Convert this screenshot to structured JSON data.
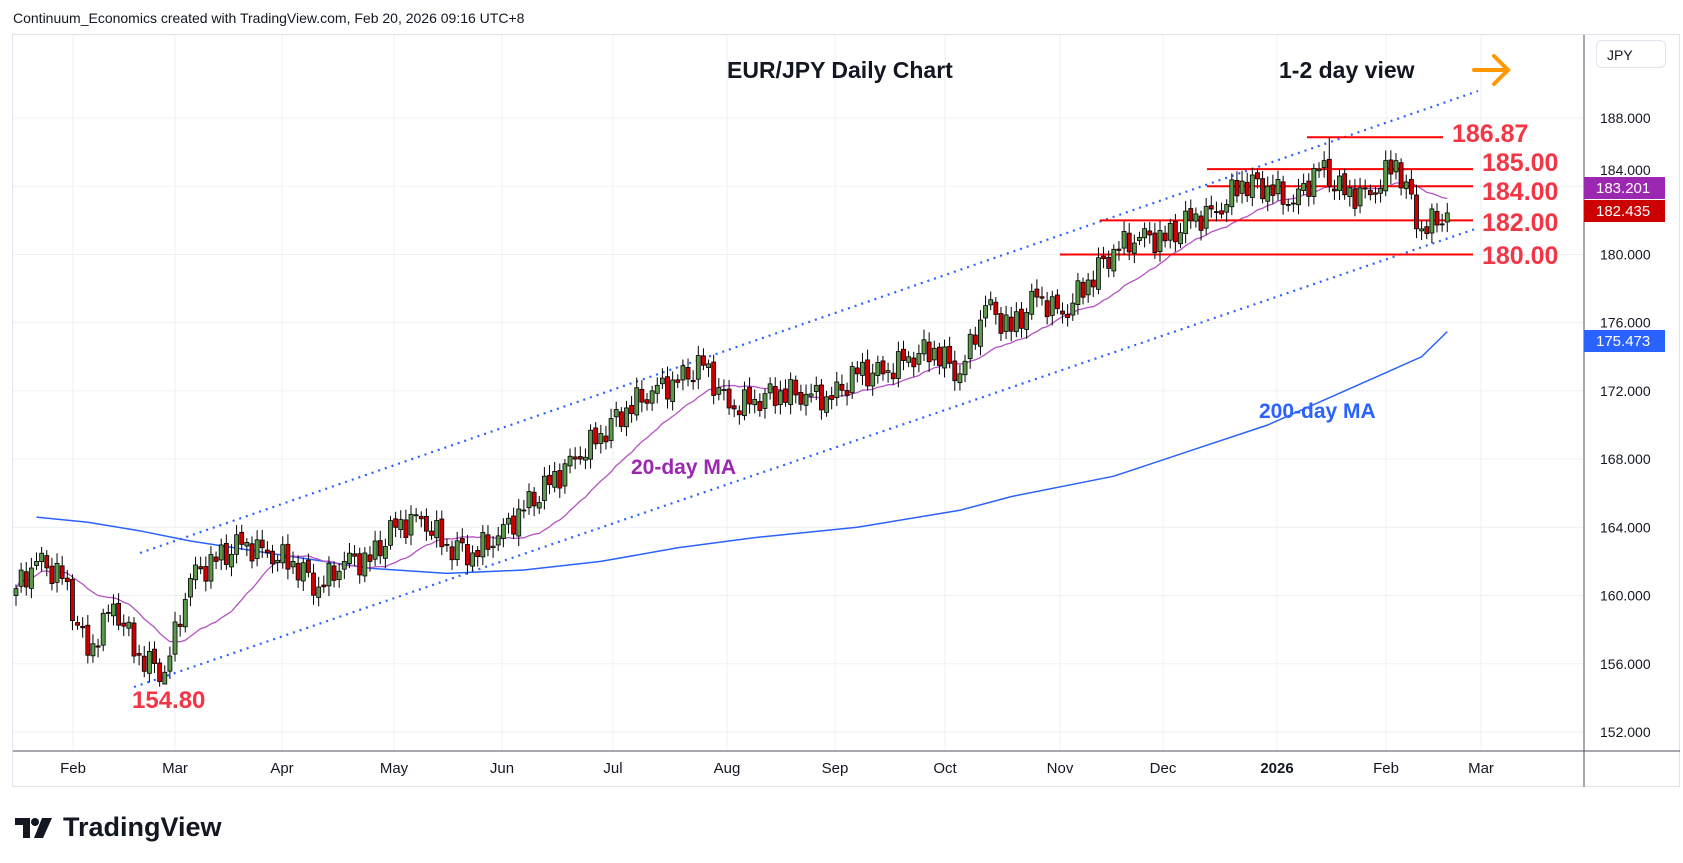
{
  "header": {
    "attribution": "Continuum_Economics created with TradingView.com, Feb 20, 2026 09:16 UTC+8"
  },
  "currency_button": "JPY",
  "brand": "TradingView",
  "chart_data": {
    "type": "candlestick",
    "title": "EUR/JPY Daily Chart",
    "subtitle": "1-2 day view",
    "view_direction": "right",
    "ylim": [
      150.5,
      190.5
    ],
    "y_ticks": [
      "152.000",
      "156.000",
      "160.000",
      "164.000",
      "168.000",
      "172.000",
      "176.000",
      "180.000",
      "184.000",
      "188.000"
    ],
    "x_ticks": [
      "Feb",
      "Mar",
      "Apr",
      "May",
      "Jun",
      "Jul",
      "Aug",
      "Sep",
      "Oct",
      "Nov",
      "Dec",
      "2026",
      "Feb",
      "Mar"
    ],
    "grid": true,
    "candles_per_week": 5,
    "weekly_closes": [
      162,
      161,
      156.5,
      159.5,
      156.5,
      155.5,
      161,
      162,
      163,
      162.5,
      162,
      160.5,
      162,
      162,
      164,
      164.5,
      163,
      162.5,
      163.5,
      165,
      166.5,
      168,
      169.5,
      171,
      172,
      172.5,
      173.5,
      171,
      171.5,
      172,
      171.8,
      171.5,
      173,
      173,
      174,
      174.5,
      173,
      177,
      175.5,
      177.5,
      176.5,
      178.5,
      180.3,
      181,
      180.8,
      182,
      182.5,
      184.3,
      184,
      183,
      185,
      183.5,
      183.5,
      185.5,
      181.5,
      182.435
    ],
    "first_open": 160.0,
    "period_low": 154.8,
    "period_high": 186.87,
    "ma200_anchors": [
      [
        0,
        164.6
      ],
      [
        2,
        164.3
      ],
      [
        4,
        163.8
      ],
      [
        6,
        163.2
      ],
      [
        9,
        162.5
      ],
      [
        13,
        161.6
      ],
      [
        16,
        161.3
      ],
      [
        19,
        161.5
      ],
      [
        22,
        162.0
      ],
      [
        25,
        162.8
      ],
      [
        28,
        163.4
      ],
      [
        32,
        164.0
      ],
      [
        36,
        165.0
      ],
      [
        38,
        165.8
      ],
      [
        42,
        167.0
      ],
      [
        45,
        168.5
      ],
      [
        48,
        170.0
      ],
      [
        51,
        172.0
      ],
      [
        54,
        174.0
      ],
      [
        55,
        175.473
      ]
    ],
    "ma20_period": 20,
    "levels": [
      {
        "label": "186.87",
        "value": 186.87
      },
      {
        "label": "185.00",
        "value": 185.0
      },
      {
        "label": "184.00",
        "value": 184.0
      },
      {
        "label": "182.00",
        "value": 182.0
      },
      {
        "label": "180.00",
        "value": 180.0
      }
    ],
    "low_label": "154.80",
    "series_labels": {
      "ma20": "20-day MA",
      "ma200": "200-day MA"
    },
    "price_tags": [
      {
        "label": "183.201",
        "value": 183.201,
        "color": "#9c27b0"
      },
      {
        "label": "182.435",
        "value": 182.435,
        "color": "#cc0000"
      },
      {
        "label": "175.473",
        "value": 175.473,
        "color": "#2962ff"
      }
    ],
    "colors": {
      "up": "#5b9a4a",
      "down": "#cc0000",
      "ma20": "#b552c4",
      "ma200": "#2962ff",
      "level": "#ff0000",
      "level_text": "#f23645",
      "channel": "#2962ff",
      "arrow": "#ff9800"
    }
  }
}
